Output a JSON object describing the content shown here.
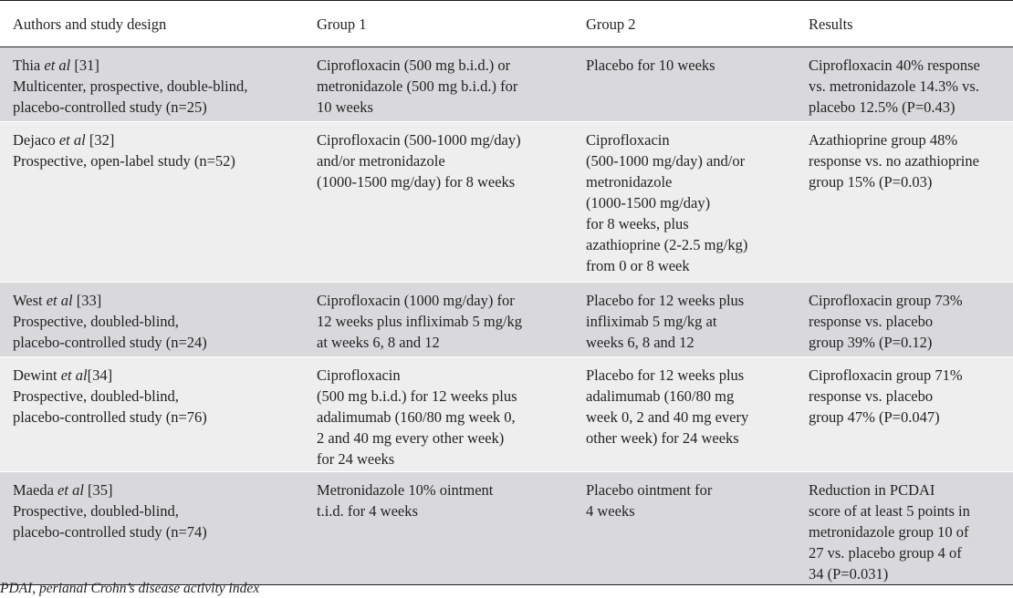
{
  "table": {
    "headers": [
      "Authors and study design",
      "Group 1",
      "Group 2",
      "Results"
    ],
    "rows": [
      {
        "author": "Thia",
        "etal": "et al",
        "ref": " [31]",
        "design": [
          "Multicenter, prospective, double-blind,",
          "placebo-controlled study (n=25)"
        ],
        "group1": [
          "Ciprofloxacin (500 mg b.i.d.) or",
          "metronidazole (500 mg b.i.d.) for",
          "10 weeks"
        ],
        "group2": [
          "Placebo for 10 weeks"
        ],
        "results": [
          "Ciprofloxacin 40% response",
          "vs. metronidazole 14.3% vs.",
          "placebo 12.5% (P=0.43)"
        ]
      },
      {
        "author": "Dejaco",
        "etal": "et al",
        "ref": " [32]",
        "design": [
          "Prospective, open-label study (n=52)"
        ],
        "group1": [
          "Ciprofloxacin (500-1000 mg/day)",
          "and/or metronidazole",
          "(1000-1500 mg/day) for 8 weeks"
        ],
        "group2": [
          "Ciprofloxacin",
          "(500-1000 mg/day) and/or",
          "metronidazole",
          "(1000-1500 mg/day)",
          "for 8 weeks, plus",
          "azathioprine (2-2.5 mg/kg)",
          "from 0 or 8 week"
        ],
        "results": [
          "Azathioprine group 48%",
          "response vs. no azathioprine",
          "group 15% (P=0.03)"
        ]
      },
      {
        "author": "West",
        "etal": "et al",
        "ref": " [33]",
        "design": [
          "Prospective, doubled-blind,",
          "placebo-controlled study (n=24)"
        ],
        "group1": [
          "Ciprofloxacin (1000 mg/day) for",
          "12 weeks plus infliximab 5 mg/kg",
          "at weeks 6, 8 and 12"
        ],
        "group2": [
          "Placebo for 12 weeks plus",
          "infliximab 5 mg/kg at",
          "weeks 6, 8 and 12"
        ],
        "results": [
          "Ciprofloxacin group 73%",
          "response vs. placebo",
          "group 39% (P=0.12)"
        ]
      },
      {
        "author": "Dewint",
        "etal": "et al",
        "ref": "[34]",
        "design": [
          "Prospective, doubled-blind,",
          "placebo-controlled study (n=76)"
        ],
        "group1": [
          "Ciprofloxacin",
          "(500 mg b.i.d.) for 12 weeks plus",
          "adalimumab (160/80 mg week 0,",
          "2 and 40 mg every other week)",
          "for 24 weeks"
        ],
        "group2": [
          "Placebo for 12 weeks plus",
          "adalimumab (160/80 mg",
          "week 0, 2 and 40 mg every",
          "other week) for 24 weeks"
        ],
        "results": [
          "Ciprofloxacin group 71%",
          "response vs. placebo",
          "group 47% (P=0.047)"
        ]
      },
      {
        "author": "Maeda",
        "etal": "et al",
        "ref": " [35]",
        "design": [
          "Prospective, doubled-blind,",
          "placebo-controlled study (n=74)"
        ],
        "group1": [
          "Metronidazole 10% ointment",
          "t.i.d. for 4 weeks"
        ],
        "group2": [
          "Placebo ointment for",
          "4 weeks"
        ],
        "results": [
          "Reduction in PCDAI",
          "score of at least 5 points in",
          "metronidazole group 10 of",
          "27 vs. placebo group 4 of",
          "34 (P=0.031)"
        ]
      }
    ]
  },
  "footnote": "PDAI, perianal Crohn’s disease activity index",
  "colors": {
    "row_shade": "#d9d9db",
    "row_light": "#eeeeef",
    "text": "#231f20"
  }
}
